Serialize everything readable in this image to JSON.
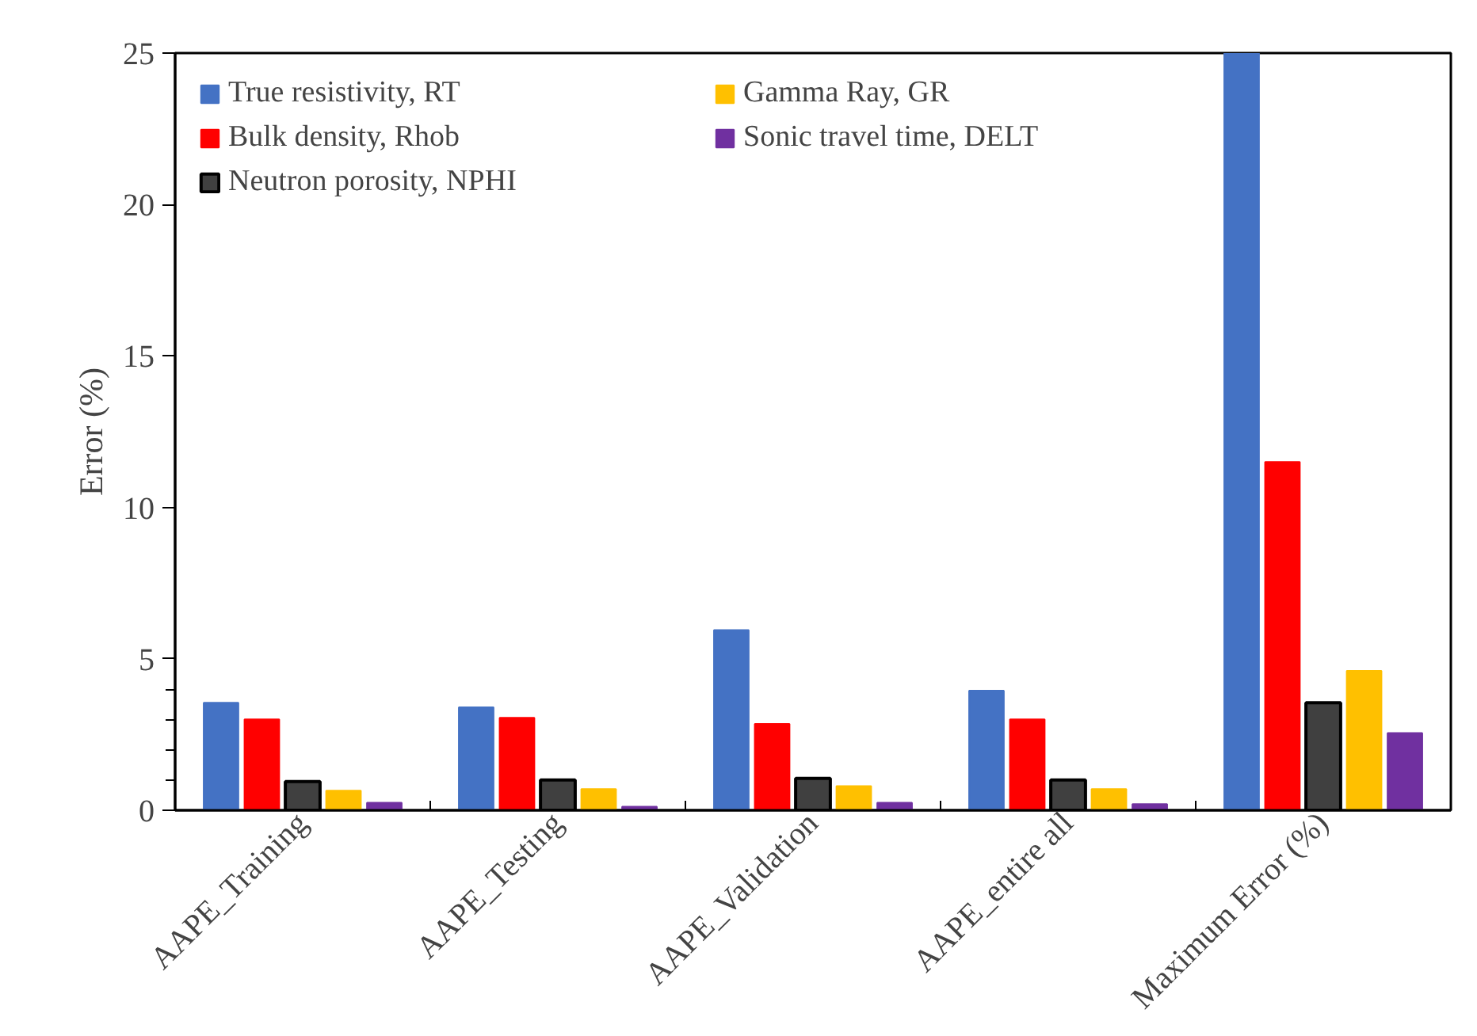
{
  "chart_data": {
    "type": "bar",
    "ylabel": "Error (%)",
    "categories": [
      "AAPE_Training",
      "AAPE_Testing",
      "AAPE_Validation",
      "AAPE_entire all",
      "Maximum Error (%)"
    ],
    "series": [
      {
        "name": "True resistivity, RT",
        "color": "#4472c4",
        "values": [
          3.55,
          3.4,
          5.95,
          3.95,
          25
        ]
      },
      {
        "name": "Bulk density, Rhob",
        "color": "#ff0000",
        "values": [
          3.0,
          3.05,
          2.85,
          3.0,
          11.5
        ]
      },
      {
        "name": "Neutron porosity, NPHI",
        "color": "#404040",
        "values": [
          0.95,
          1.0,
          1.05,
          1.0,
          3.55
        ]
      },
      {
        "name": "Gamma Ray, GR",
        "color": "#ffc000",
        "values": [
          0.65,
          0.7,
          0.8,
          0.7,
          4.6
        ]
      },
      {
        "name": "Sonic travel time, DELT",
        "color": "#7030a0",
        "values": [
          0.25,
          0.12,
          0.25,
          0.2,
          2.55
        ]
      }
    ],
    "ylim": [
      0,
      25
    ],
    "yticks": [
      0,
      {
        "value": 1,
        "label": null
      },
      {
        "value": 2,
        "label": null
      },
      {
        "value": 3,
        "label": null
      },
      {
        "value": 4,
        "label": null
      },
      5,
      10,
      15,
      20,
      25
    ],
    "grid": false,
    "legend": "top"
  }
}
